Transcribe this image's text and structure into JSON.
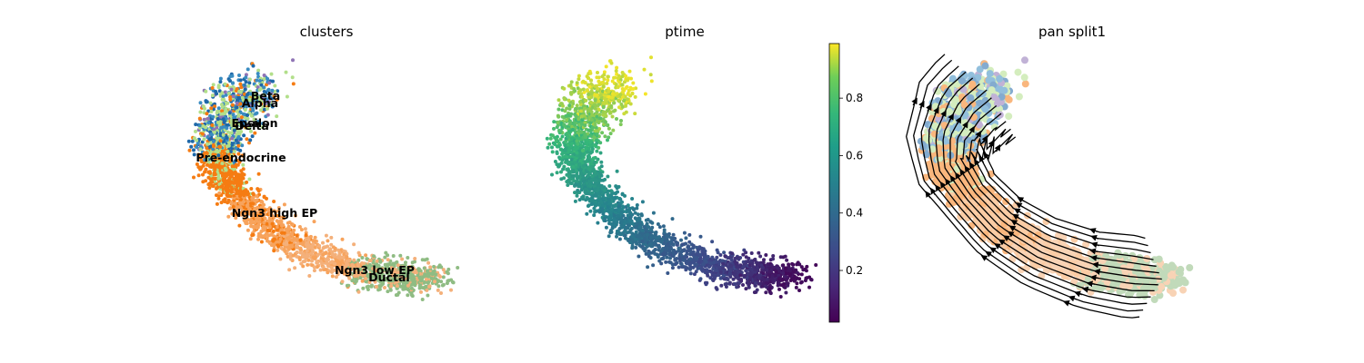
{
  "chart_data": [
    {
      "type": "scatter",
      "title": "clusters",
      "legend": "on data",
      "grid": false,
      "clusters": [
        {
          "name": "Ductal",
          "color": "#8fbc83"
        },
        {
          "name": "Ngn3 low EP",
          "color": "#f4b07a"
        },
        {
          "name": "Ngn3 high EP",
          "color": "#f7a35c"
        },
        {
          "name": "Pre-endocrine",
          "color": "#f57c13"
        },
        {
          "name": "Beta",
          "color": "#b2df8a"
        },
        {
          "name": "Alpha",
          "color": "#1f68a8"
        },
        {
          "name": "Delta",
          "color": "#3a8cc1"
        },
        {
          "name": "Epsilon",
          "color": "#8f74b5"
        }
      ]
    },
    {
      "type": "scatter",
      "title": "ptime",
      "colorbar": {
        "colormap": "viridis",
        "ticks": [
          "0.2",
          "0.4",
          "0.6",
          "0.8"
        ],
        "range": [
          0.02,
          0.99
        ]
      }
    },
    {
      "type": "scatter",
      "title": "pan split1",
      "overlay": "streamlines with arrows"
    }
  ]
}
